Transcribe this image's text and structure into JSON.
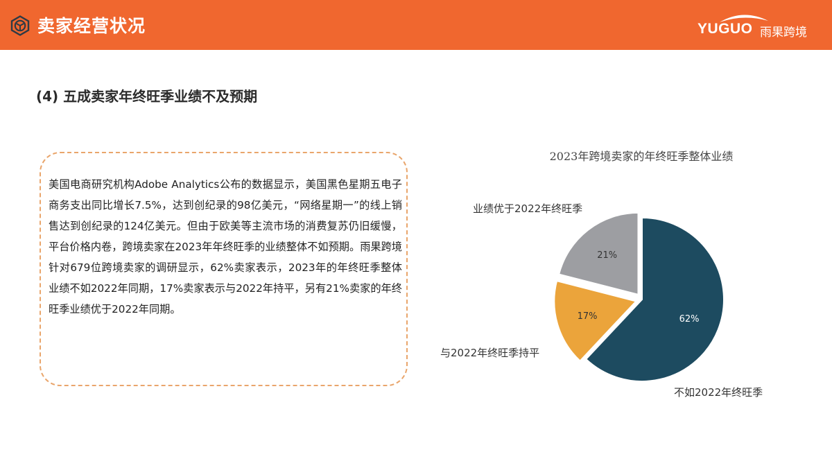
{
  "header": {
    "title": "卖家经营状况",
    "icon": "hexagon-cube-icon",
    "brand_en": "YUGUO",
    "brand_cn": "雨果跨境",
    "background_color": "#f0672f"
  },
  "section": {
    "title": "(4) 五成卖家年终旺季业绩不及预期"
  },
  "text_box": {
    "paragraph": "美国电商研究机构Adobe  Analytics公布的数据显示，美国黑色星期五电子商务支出同比增长7.5%，达到创纪录的98亿美元，“网络星期一”的线上销售达到创纪录的124亿美元。但由于欧美等主流市场的消费复苏仍旧缓慢，平台价格内卷，跨境卖家在2023年年终旺季的业绩整体不如预期。雨果跨境针对679位跨境卖家的调研显示，62%卖家表示，2023年的年终旺季整体业绩不如2022年同期，17%卖家表示与2022年持平，另有21%卖家的年终旺季业绩优于2022年同期。",
    "border_color": "#e9a56b"
  },
  "chart_data": {
    "type": "pie",
    "title": "2023年跨境卖家的年终旺季整体业绩",
    "categories": [
      "不如2022年终旺季",
      "与2022年终旺季持平",
      "业绩优于2022年终旺季"
    ],
    "values": [
      62,
      17,
      21
    ],
    "value_labels": [
      "62%",
      "17%",
      "21%"
    ],
    "colors": [
      "#1d4b60",
      "#eba43b",
      "#9d9ea2"
    ],
    "label_colors": [
      "#ffffff",
      "#333333",
      "#333333"
    ],
    "start_angle_deg": 0,
    "direction": "clockwise",
    "exploded": [
      "与2022年终旺季持平",
      "业绩优于2022年终旺季"
    ],
    "legend": "none (category labels placed beside slices)"
  }
}
